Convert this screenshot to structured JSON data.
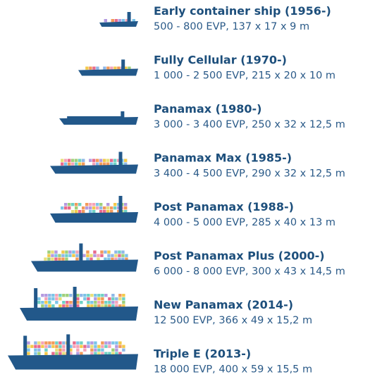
{
  "items": [
    {
      "title": "Early container ship (1956-)",
      "specs": "500 - 800 EVP, 137 x 17 x 9 m"
    },
    {
      "title": "Fully Cellular (1970-)",
      "specs": "1 000 - 2 500 EVP, 215 x 20 x 10 m"
    },
    {
      "title": "Panamax (1980-)",
      "specs": "3 000 - 3 400 EVP, 250 x 32 x 12,5 m"
    },
    {
      "title": "Panamax Max (1985-)",
      "specs": "3 400 - 4 500 EVP, 290 x 32 x 12,5 m"
    },
    {
      "title": "Post Panamax (1988-)",
      "specs": "4 000 - 5 000 EVP, 285 x 40 x 13 m"
    },
    {
      "title": "Post Panamax Plus (2000-)",
      "specs": "6 000 - 8 000 EVP, 300 x 43 x 14,5 m"
    },
    {
      "title": "New Panamax (2014-)",
      "specs": "12 500 EVP, 366 x 49 x 15,2 m"
    },
    {
      "title": "Triple E (2013-)",
      "specs": "18 000 EVP, 400 x 59 x 15,5 m"
    }
  ]
}
